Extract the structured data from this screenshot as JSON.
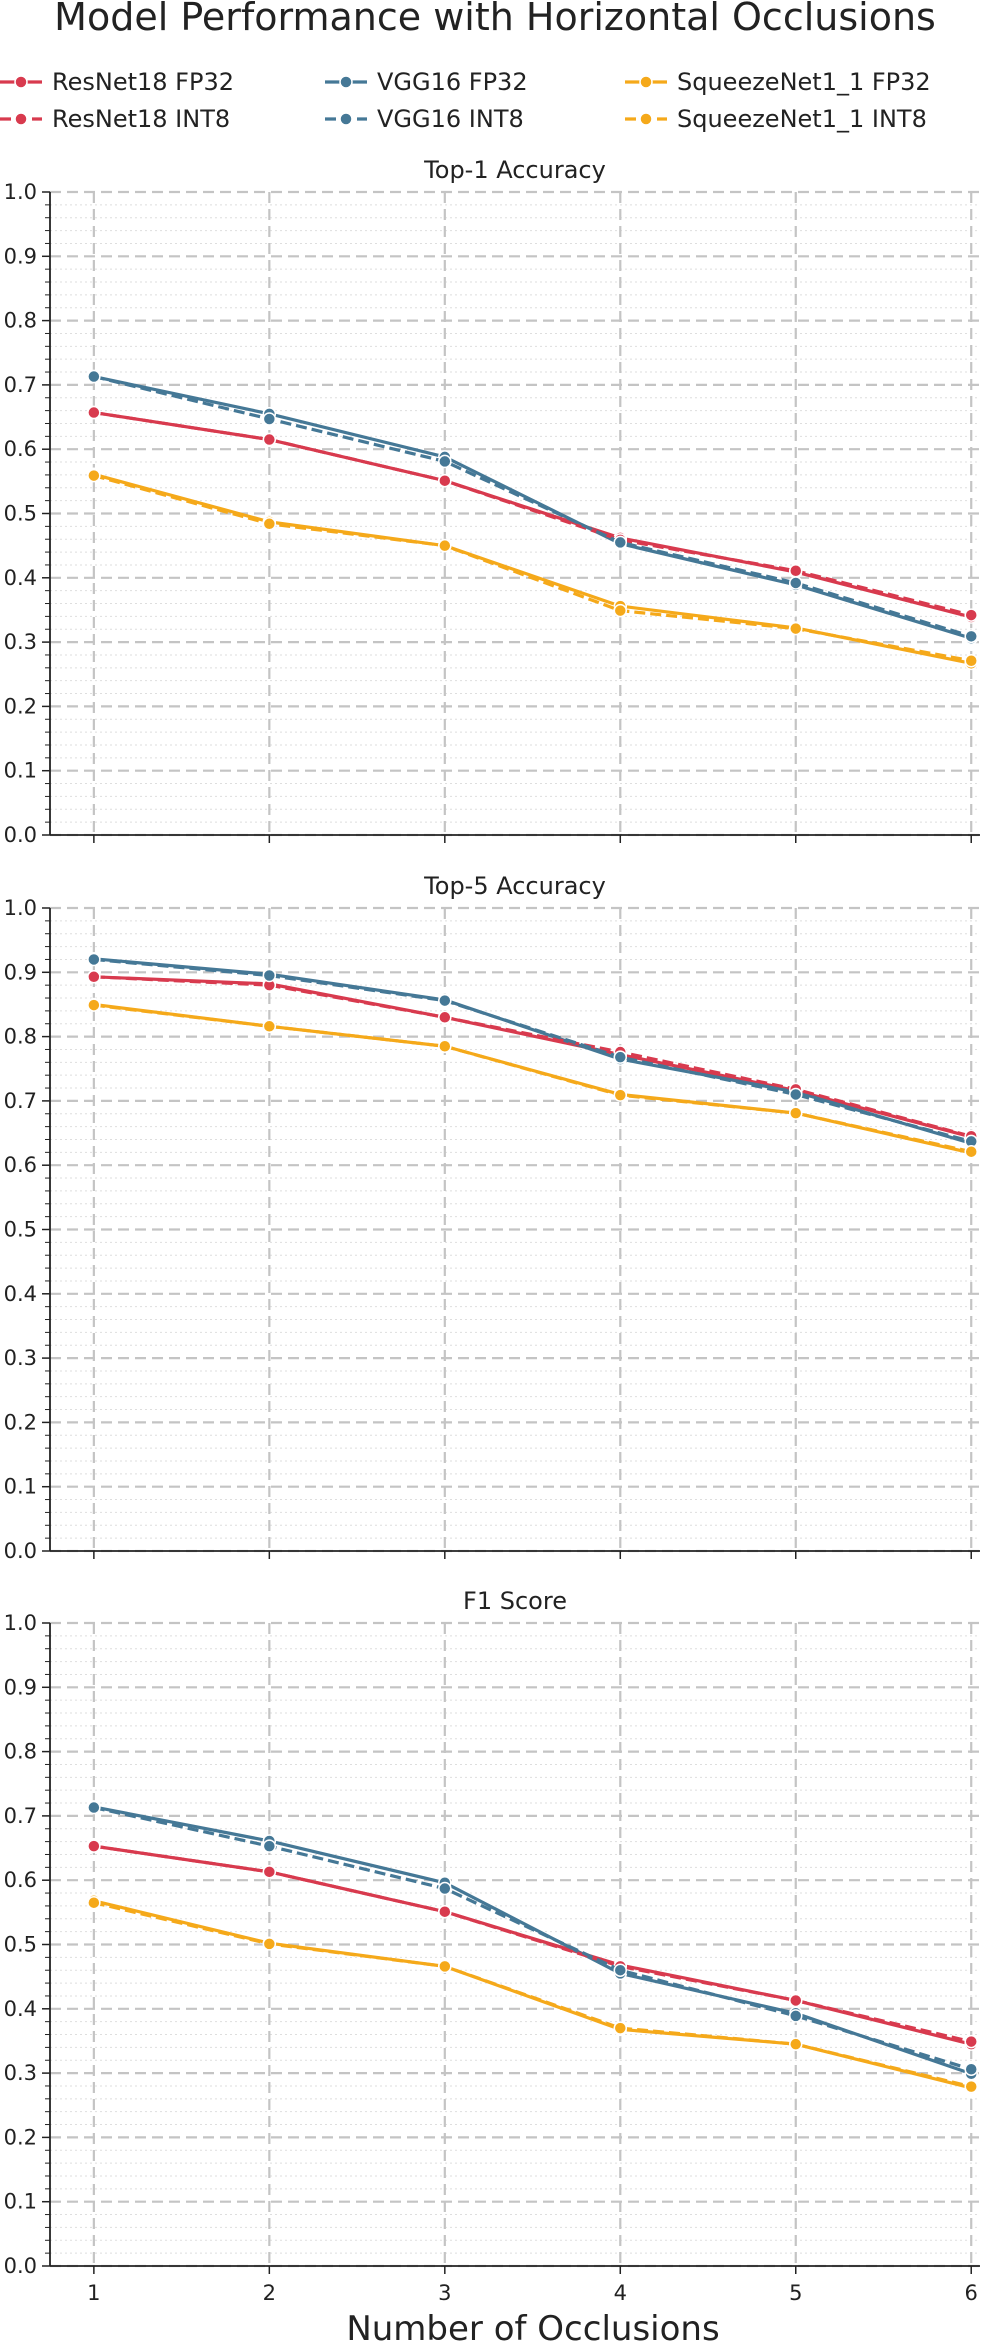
{
  "title": "Model Performance with Horizontal Occlusions",
  "xlabel": "Number of Occlusions",
  "legend": [
    {
      "label": "ResNet18 FP32",
      "color": "#d83a4e",
      "dashed": false
    },
    {
      "label": "ResNet18 INT8",
      "color": "#d83a4e",
      "dashed": true
    },
    {
      "label": "VGG16 FP32",
      "color": "#457896",
      "dashed": false
    },
    {
      "label": "VGG16 INT8",
      "color": "#457896",
      "dashed": true
    },
    {
      "label": "SqueezeNet1_1 FP32",
      "color": "#f5a91a",
      "dashed": false
    },
    {
      "label": "SqueezeNet1_1 INT8",
      "color": "#f5a91a",
      "dashed": true
    }
  ],
  "chart_data": [
    {
      "type": "line",
      "title": "Top-1 Accuracy",
      "x": [
        1,
        2,
        3,
        4,
        5,
        6
      ],
      "ylim": [
        0,
        1.0
      ],
      "yticks": [
        "0.0",
        "0.1",
        "0.2",
        "0.3",
        "0.4",
        "0.5",
        "0.6",
        "0.7",
        "0.8",
        "0.9",
        "1.0"
      ],
      "grid": true,
      "series": [
        {
          "name": "ResNet18 FP32",
          "color": "#d83a4e",
          "dashed": false,
          "values": [
            0.657,
            0.615,
            0.551,
            0.462,
            0.409,
            0.339
          ]
        },
        {
          "name": "ResNet18 INT8",
          "color": "#d83a4e",
          "dashed": true,
          "values": [
            0.657,
            0.615,
            0.551,
            0.459,
            0.411,
            0.342
          ]
        },
        {
          "name": "VGG16 FP32",
          "color": "#457896",
          "dashed": false,
          "values": [
            0.713,
            0.655,
            0.588,
            0.453,
            0.389,
            0.306
          ]
        },
        {
          "name": "VGG16 INT8",
          "color": "#457896",
          "dashed": true,
          "values": [
            0.713,
            0.647,
            0.581,
            0.455,
            0.392,
            0.309
          ]
        },
        {
          "name": "SqueezeNet1_1 FP32",
          "color": "#f5a91a",
          "dashed": false,
          "values": [
            0.561,
            0.487,
            0.45,
            0.356,
            0.322,
            0.267
          ]
        },
        {
          "name": "SqueezeNet1_1 INT8",
          "color": "#f5a91a",
          "dashed": true,
          "values": [
            0.559,
            0.484,
            0.45,
            0.349,
            0.321,
            0.271
          ]
        }
      ]
    },
    {
      "type": "line",
      "title": "Top-5 Accuracy",
      "x": [
        1,
        2,
        3,
        4,
        5,
        6
      ],
      "ylim": [
        0,
        1.0
      ],
      "yticks": [
        "0.0",
        "0.1",
        "0.2",
        "0.3",
        "0.4",
        "0.5",
        "0.6",
        "0.7",
        "0.8",
        "0.9",
        "1.0"
      ],
      "grid": true,
      "series": [
        {
          "name": "ResNet18 FP32",
          "color": "#d83a4e",
          "dashed": false,
          "values": [
            0.893,
            0.882,
            0.83,
            0.772,
            0.716,
            0.644
          ]
        },
        {
          "name": "ResNet18 INT8",
          "color": "#d83a4e",
          "dashed": true,
          "values": [
            0.893,
            0.88,
            0.83,
            0.776,
            0.718,
            0.645
          ]
        },
        {
          "name": "VGG16 FP32",
          "color": "#457896",
          "dashed": false,
          "values": [
            0.921,
            0.897,
            0.857,
            0.765,
            0.714,
            0.634
          ]
        },
        {
          "name": "VGG16 INT8",
          "color": "#457896",
          "dashed": true,
          "values": [
            0.92,
            0.895,
            0.856,
            0.768,
            0.71,
            0.637
          ]
        },
        {
          "name": "SqueezeNet1_1 FP32",
          "color": "#f5a91a",
          "dashed": false,
          "values": [
            0.85,
            0.816,
            0.785,
            0.71,
            0.681,
            0.619
          ]
        },
        {
          "name": "SqueezeNet1_1 INT8",
          "color": "#f5a91a",
          "dashed": true,
          "values": [
            0.849,
            0.816,
            0.785,
            0.709,
            0.681,
            0.621
          ]
        }
      ]
    },
    {
      "type": "line",
      "title": "F1 Score",
      "x": [
        1,
        2,
        3,
        4,
        5,
        6
      ],
      "ylim": [
        0,
        1.0
      ],
      "yticks": [
        "0.0",
        "0.1",
        "0.2",
        "0.3",
        "0.4",
        "0.5",
        "0.6",
        "0.7",
        "0.8",
        "0.9",
        "1.0"
      ],
      "grid": true,
      "series": [
        {
          "name": "ResNet18 FP32",
          "color": "#d83a4e",
          "dashed": false,
          "values": [
            0.653,
            0.613,
            0.551,
            0.468,
            0.413,
            0.345
          ]
        },
        {
          "name": "ResNet18 INT8",
          "color": "#d83a4e",
          "dashed": true,
          "values": [
            0.653,
            0.613,
            0.551,
            0.466,
            0.413,
            0.349
          ]
        },
        {
          "name": "VGG16 FP32",
          "color": "#457896",
          "dashed": false,
          "values": [
            0.714,
            0.661,
            0.596,
            0.455,
            0.393,
            0.299
          ]
        },
        {
          "name": "VGG16 INT8",
          "color": "#457896",
          "dashed": true,
          "values": [
            0.713,
            0.653,
            0.587,
            0.46,
            0.389,
            0.306
          ]
        },
        {
          "name": "SqueezeNet1_1 FP32",
          "color": "#f5a91a",
          "dashed": false,
          "values": [
            0.568,
            0.502,
            0.466,
            0.368,
            0.345,
            0.277
          ]
        },
        {
          "name": "SqueezeNet1_1 INT8",
          "color": "#f5a91a",
          "dashed": true,
          "values": [
            0.565,
            0.501,
            0.466,
            0.37,
            0.345,
            0.279
          ]
        }
      ]
    }
  ]
}
